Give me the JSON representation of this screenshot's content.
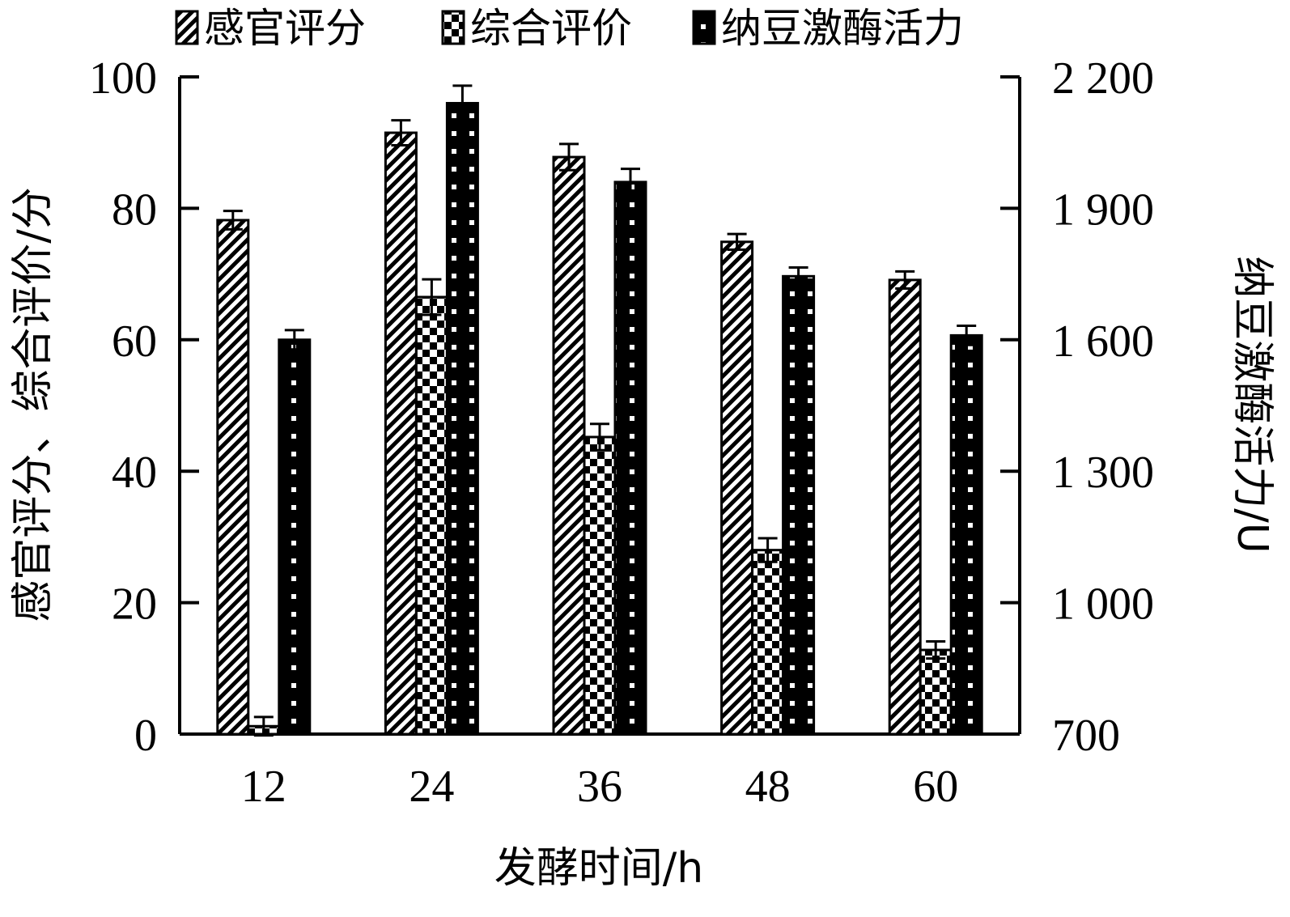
{
  "chart_data": {
    "type": "bar",
    "categories": [
      "12",
      "24",
      "36",
      "48",
      "60"
    ],
    "xlabel": "发酵时间/h",
    "ylabel_left": "感官评分、综合评价/分",
    "ylabel_right": "纳豆激酶活力/U",
    "left_axis": {
      "range": [
        0,
        100
      ],
      "ticks": [
        0,
        20,
        40,
        60,
        80,
        100
      ],
      "tick_labels": [
        "0",
        "20",
        "40",
        "60",
        "80",
        "100"
      ]
    },
    "right_axis": {
      "range": [
        700,
        2200
      ],
      "ticks": [
        700,
        1000,
        1300,
        1600,
        1900,
        2200
      ],
      "tick_labels": [
        "700",
        "1 000",
        "1 300",
        "1 600",
        "1 900",
        "2 200"
      ]
    },
    "legend_placement": "top",
    "series": [
      {
        "name": "感官评分",
        "axis": "left",
        "pattern": "diagonal",
        "values": [
          78.2,
          91.5,
          87.8,
          74.9,
          69.1
        ],
        "errors": [
          1.4,
          1.9,
          2.0,
          1.2,
          1.3
        ]
      },
      {
        "name": "综合评价",
        "axis": "left",
        "pattern": "checker",
        "values": [
          1.2,
          66.5,
          45.2,
          28.0,
          12.8
        ],
        "errors": [
          1.4,
          2.7,
          2.0,
          1.8,
          1.3
        ]
      },
      {
        "name": "纳豆激酶活力",
        "axis": "right",
        "pattern": "dotted",
        "values": [
          1600,
          2140,
          1960,
          1745,
          1610
        ],
        "errors": [
          22,
          40,
          30,
          20,
          22
        ]
      }
    ]
  }
}
